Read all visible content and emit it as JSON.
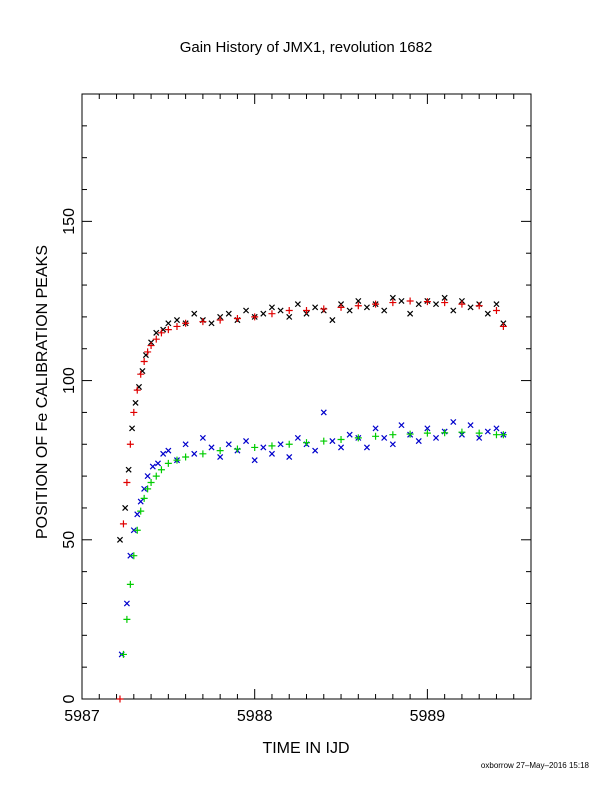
{
  "chart_data": {
    "type": "scatter",
    "title": "Gain History of JMX1, revolution 1682",
    "xlabel": "TIME IN IJD",
    "ylabel": "POSITION OF Fe CALIBRATION PEAKS",
    "xlim": [
      5987.0,
      5989.6
    ],
    "ylim": [
      0,
      190
    ],
    "x_ticks": [
      5987,
      5988,
      5989
    ],
    "y_ticks": [
      0,
      50,
      100,
      150
    ],
    "grid": false,
    "footer": "oxborrow 27–May–2016 15:18",
    "series": [
      {
        "marker": "x",
        "color": "#000000",
        "x": [
          5987.22,
          5987.25,
          5987.27,
          5987.29,
          5987.31,
          5987.33,
          5987.35,
          5987.37,
          5987.4,
          5987.43,
          5987.47,
          5987.5,
          5987.55,
          5987.6,
          5987.65,
          5987.7,
          5987.75,
          5987.8,
          5987.85,
          5987.9,
          5987.95,
          5988.0,
          5988.05,
          5988.1,
          5988.15,
          5988.2,
          5988.25,
          5988.3,
          5988.35,
          5988.4,
          5988.45,
          5988.5,
          5988.55,
          5988.6,
          5988.65,
          5988.7,
          5988.75,
          5988.8,
          5988.85,
          5988.9,
          5988.95,
          5989.0,
          5989.05,
          5989.1,
          5989.15,
          5989.2,
          5989.25,
          5989.3,
          5989.35,
          5989.4,
          5989.44
        ],
        "y": [
          50,
          60,
          72,
          85,
          93,
          98,
          103,
          108,
          112,
          115,
          116,
          118,
          119,
          118,
          121,
          119,
          118,
          120,
          121,
          119,
          122,
          120,
          121,
          123,
          122,
          120,
          124,
          121,
          123,
          122,
          119,
          124,
          122,
          125,
          123,
          124,
          122,
          126,
          125,
          121,
          124,
          125,
          124,
          126,
          122,
          125,
          123,
          124,
          121,
          124,
          118
        ]
      },
      {
        "marker": "+",
        "color": "#e00000",
        "x": [
          5987.22,
          5987.24,
          5987.26,
          5987.28,
          5987.3,
          5987.32,
          5987.34,
          5987.36,
          5987.38,
          5987.4,
          5987.43,
          5987.46,
          5987.5,
          5987.55,
          5987.6,
          5987.7,
          5987.8,
          5987.9,
          5988.0,
          5988.1,
          5988.2,
          5988.3,
          5988.4,
          5988.5,
          5988.6,
          5988.7,
          5988.8,
          5988.9,
          5989.0,
          5989.1,
          5989.2,
          5989.3,
          5989.4,
          5989.44
        ],
        "y": [
          0,
          55,
          68,
          80,
          90,
          97,
          102,
          106,
          109,
          111,
          113,
          115,
          116,
          117,
          118,
          118.5,
          119,
          119.5,
          120,
          121,
          122,
          122,
          122.5,
          123,
          123.5,
          124,
          124.5,
          125,
          124.8,
          124.5,
          124,
          123.5,
          122,
          117
        ]
      },
      {
        "marker": "x",
        "color": "#0000cc",
        "x": [
          5987.23,
          5987.26,
          5987.28,
          5987.3,
          5987.32,
          5987.34,
          5987.36,
          5987.38,
          5987.41,
          5987.44,
          5987.47,
          5987.5,
          5987.55,
          5987.6,
          5987.65,
          5987.7,
          5987.75,
          5987.8,
          5987.85,
          5987.9,
          5987.95,
          5988.0,
          5988.05,
          5988.1,
          5988.15,
          5988.2,
          5988.25,
          5988.3,
          5988.35,
          5988.4,
          5988.45,
          5988.5,
          5988.55,
          5988.6,
          5988.65,
          5988.7,
          5988.75,
          5988.8,
          5988.85,
          5988.9,
          5988.95,
          5989.0,
          5989.05,
          5989.1,
          5989.15,
          5989.2,
          5989.25,
          5989.3,
          5989.35,
          5989.4,
          5989.44
        ],
        "y": [
          14,
          30,
          45,
          53,
          58,
          62,
          66,
          70,
          73,
          74,
          77,
          78,
          75,
          80,
          77,
          82,
          79,
          76,
          80,
          78,
          81,
          75,
          79,
          77,
          80,
          76,
          82,
          80,
          78,
          90,
          81,
          79,
          83,
          82,
          79,
          85,
          82,
          80,
          86,
          83,
          81,
          85,
          82,
          84,
          87,
          83,
          86,
          82,
          84,
          85,
          83
        ]
      },
      {
        "marker": "+",
        "color": "#00cc00",
        "x": [
          5987.24,
          5987.26,
          5987.28,
          5987.3,
          5987.32,
          5987.34,
          5987.36,
          5987.38,
          5987.4,
          5987.43,
          5987.46,
          5987.5,
          5987.55,
          5987.6,
          5987.7,
          5987.8,
          5987.9,
          5988.0,
          5988.1,
          5988.2,
          5988.3,
          5988.4,
          5988.5,
          5988.6,
          5988.7,
          5988.8,
          5988.9,
          5989.0,
          5989.1,
          5989.2,
          5989.3,
          5989.4,
          5989.44
        ],
        "y": [
          14,
          25,
          36,
          45,
          53,
          59,
          63,
          66,
          68,
          70,
          72,
          74,
          75,
          76,
          77,
          78,
          78.5,
          79,
          79.5,
          80,
          80.5,
          81,
          81.5,
          82,
          82.5,
          83,
          83.2,
          83.5,
          83.6,
          83.8,
          83.5,
          83,
          83
        ]
      }
    ]
  }
}
